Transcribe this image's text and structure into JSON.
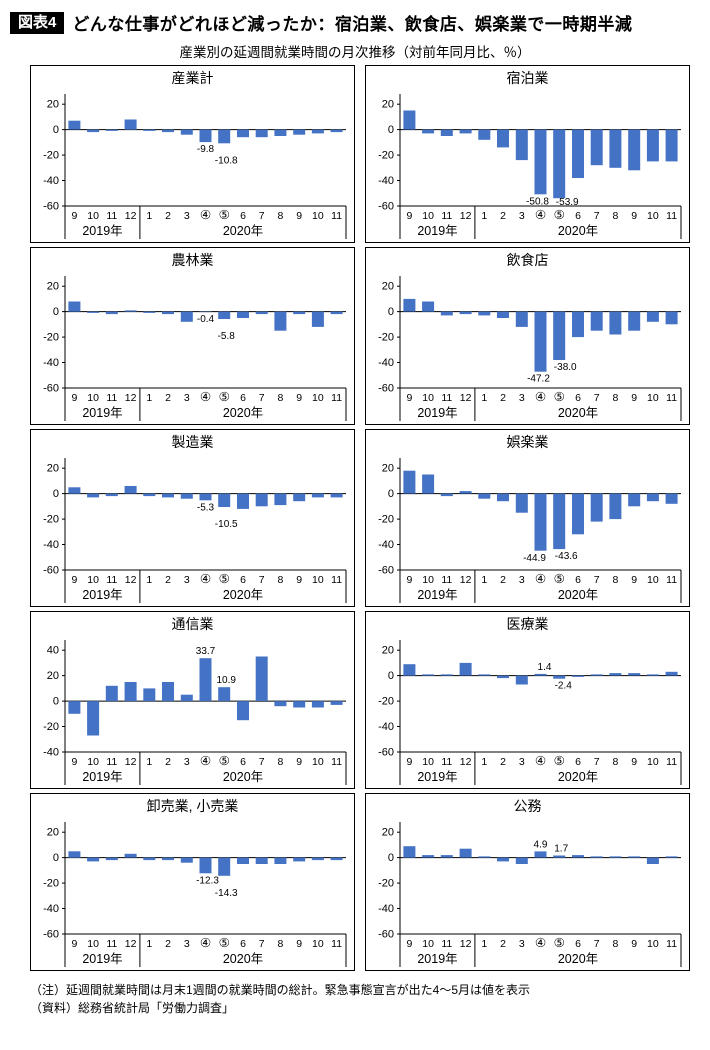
{
  "header": {
    "badge": "図表4",
    "title": "どんな仕事がどれほど減ったか：宿泊業、飲食店、娯楽業で一時期半減"
  },
  "subtitle": "産業別の延週間就業時間の月次推移（対前年同月比、％）",
  "footnotes": [
    "（注）延週間就業時間は月末1週間の就業時間の総計。緊急事態宣言が出た4～5月は値を表示",
    "（資料）総務省統計局「労働力調査」"
  ],
  "bar_color": "#4472c4",
  "x_months": [
    "9",
    "10",
    "11",
    "12",
    "1",
    "2",
    "3",
    "④",
    "⑤",
    "6",
    "7",
    "8",
    "9",
    "10",
    "11"
  ],
  "year_labels": [
    "2019年",
    "2020年"
  ],
  "chart_data": [
    {
      "type": "bar",
      "title": "産業計",
      "ymax": 28,
      "ymin": -60,
      "yticks": [
        20,
        0,
        -20,
        -40,
        -60
      ],
      "values": [
        7,
        -2,
        -1,
        8,
        -1,
        -2,
        -4,
        -9.8,
        -10.8,
        -6,
        -6,
        -5,
        -4,
        -3,
        -2
      ],
      "annotations": [
        {
          "i": 7,
          "text": "-9.8",
          "side": "below",
          "line": 0,
          "dx": 0
        },
        {
          "i": 8,
          "text": "-10.8",
          "side": "below",
          "line": 1,
          "dx": 2
        }
      ]
    },
    {
      "type": "bar",
      "title": "宿泊業",
      "ymax": 28,
      "ymin": -60,
      "yticks": [
        20,
        0,
        -20,
        -40,
        -60
      ],
      "values": [
        15,
        -3,
        -5,
        -3,
        -8,
        -14,
        -24,
        -50.8,
        -53.9,
        -38,
        -28,
        -30,
        -32,
        -25,
        -25
      ],
      "annotations": [
        {
          "i": 7,
          "text": "-50.8",
          "side": "below",
          "line": 0,
          "dx": -3
        },
        {
          "i": 8,
          "text": "-53.9",
          "side": "below",
          "line": 1,
          "dx": 8
        }
      ]
    },
    {
      "type": "bar",
      "title": "農林業",
      "ymax": 28,
      "ymin": -60,
      "yticks": [
        20,
        0,
        -20,
        -40,
        -60
      ],
      "values": [
        8,
        -1,
        -2,
        1,
        -1,
        -2,
        -8,
        -0.4,
        -5.8,
        -5,
        -2,
        -15,
        -2,
        -12,
        -2
      ],
      "annotations": [
        {
          "i": 7,
          "text": "-0.4",
          "side": "below",
          "line": 0,
          "dx": 0
        },
        {
          "i": 8,
          "text": "-5.8",
          "side": "below",
          "line": 1,
          "dx": 2
        }
      ]
    },
    {
      "type": "bar",
      "title": "飲食店",
      "ymax": 28,
      "ymin": -60,
      "yticks": [
        20,
        0,
        -20,
        -40,
        -60
      ],
      "values": [
        10,
        8,
        -3,
        -2,
        -3,
        -5,
        -12,
        -47.2,
        -38.0,
        -20,
        -15,
        -18,
        -15,
        -8,
        -10
      ],
      "annotations": [
        {
          "i": 7,
          "text": "-47.2",
          "side": "below",
          "line": 0,
          "dx": -2
        },
        {
          "i": 8,
          "text": "-38.0",
          "side": "below",
          "line": 0,
          "dx": 6
        }
      ]
    },
    {
      "type": "bar",
      "title": "製造業",
      "ymax": 28,
      "ymin": -60,
      "yticks": [
        20,
        0,
        -20,
        -40,
        -60
      ],
      "values": [
        5,
        -3,
        -2,
        6,
        -2,
        -3,
        -4,
        -5.3,
        -10.5,
        -12,
        -10,
        -9,
        -6,
        -3,
        -3
      ],
      "annotations": [
        {
          "i": 7,
          "text": "-5.3",
          "side": "below",
          "line": 0,
          "dx": 0
        },
        {
          "i": 8,
          "text": "-10.5",
          "side": "below",
          "line": 1,
          "dx": 2
        }
      ]
    },
    {
      "type": "bar",
      "title": "娯楽業",
      "ymax": 28,
      "ymin": -60,
      "yticks": [
        20,
        0,
        -20,
        -40,
        -60
      ],
      "values": [
        18,
        15,
        -2,
        2,
        -4,
        -6,
        -15,
        -44.9,
        -43.6,
        -32,
        -22,
        -20,
        -10,
        -6,
        -8
      ],
      "annotations": [
        {
          "i": 7,
          "text": "-44.9",
          "side": "below",
          "line": 0,
          "dx": -6
        },
        {
          "i": 8,
          "text": "-43.6",
          "side": "below",
          "line": 0,
          "dx": 7
        }
      ]
    },
    {
      "type": "bar",
      "title": "通信業",
      "ymax": 48,
      "ymin": -40,
      "yticks": [
        40,
        20,
        0,
        -20,
        -40
      ],
      "values": [
        -10,
        -27,
        12,
        15,
        10,
        15,
        5,
        33.7,
        10.9,
        -15,
        35,
        -4,
        -5,
        -5,
        -3
      ],
      "annotations": [
        {
          "i": 7,
          "text": "33.7",
          "side": "above",
          "line": 0,
          "dx": 0
        },
        {
          "i": 8,
          "text": "10.9",
          "side": "above",
          "line": 0,
          "dx": 2
        }
      ]
    },
    {
      "type": "bar",
      "title": "医療業",
      "ymax": 28,
      "ymin": -60,
      "yticks": [
        20,
        0,
        -20,
        -40,
        -60
      ],
      "values": [
        9,
        1,
        1,
        10,
        1,
        -2,
        -7,
        1.4,
        -2.4,
        -1,
        1,
        2,
        2,
        1,
        3
      ],
      "annotations": [
        {
          "i": 7,
          "text": "1.4",
          "side": "above",
          "line": 0,
          "dx": 4
        },
        {
          "i": 8,
          "text": "-2.4",
          "side": "below",
          "line": 0,
          "dx": 4
        }
      ]
    },
    {
      "type": "bar",
      "title": "卸売業, 小売業",
      "ymax": 28,
      "ymin": -60,
      "yticks": [
        20,
        0,
        -20,
        -40,
        -60
      ],
      "values": [
        5,
        -3,
        -2,
        3,
        -2,
        -2,
        -4,
        -12.3,
        -14.3,
        -5,
        -5,
        -5,
        -3,
        -2,
        -2
      ],
      "annotations": [
        {
          "i": 7,
          "text": "-12.3",
          "side": "below",
          "line": 0,
          "dx": 2
        },
        {
          "i": 8,
          "text": "-14.3",
          "side": "below",
          "line": 1,
          "dx": 2
        }
      ]
    },
    {
      "type": "bar",
      "title": "公務",
      "ymax": 28,
      "ymin": -60,
      "yticks": [
        20,
        0,
        -20,
        -40,
        -60
      ],
      "values": [
        9,
        2,
        2,
        7,
        1,
        -3,
        -5,
        4.9,
        1.7,
        2,
        1,
        1,
        1,
        -5,
        1
      ],
      "annotations": [
        {
          "i": 7,
          "text": "4.9",
          "side": "above",
          "line": 0,
          "dx": 0
        },
        {
          "i": 8,
          "text": "1.7",
          "side": "above",
          "line": 0,
          "dx": 2
        }
      ]
    }
  ]
}
